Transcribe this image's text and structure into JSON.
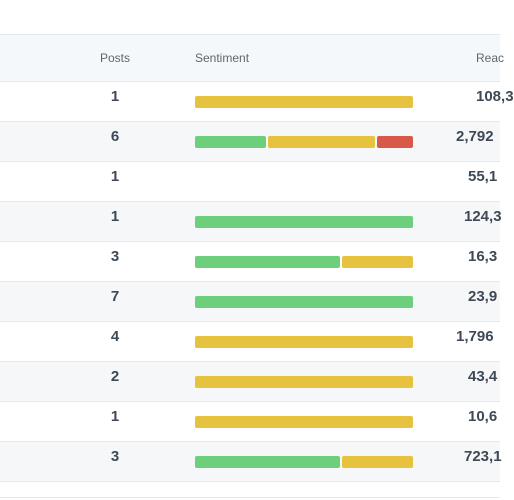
{
  "header": {
    "posts": "Posts",
    "sentiment": "Sentiment",
    "reach": "Reac"
  },
  "rows": [
    {
      "posts": "1",
      "reach": "108,3",
      "sentiment": [
        {
          "type": "neu",
          "share": 1.0
        }
      ]
    },
    {
      "posts": "6",
      "reach": "2,792",
      "sentiment": [
        {
          "type": "pos",
          "share": 0.33
        },
        {
          "type": "neu",
          "share": 0.5
        },
        {
          "type": "neg",
          "share": 0.17
        }
      ]
    },
    {
      "posts": "1",
      "reach": "55,1",
      "sentiment": []
    },
    {
      "posts": "1",
      "reach": "124,3",
      "sentiment": [
        {
          "type": "pos",
          "share": 1.0
        }
      ]
    },
    {
      "posts": "3",
      "reach": "16,3",
      "sentiment": [
        {
          "type": "pos",
          "share": 0.67
        },
        {
          "type": "neu",
          "share": 0.33
        }
      ]
    },
    {
      "posts": "7",
      "reach": "23,9",
      "sentiment": [
        {
          "type": "pos",
          "share": 1.0
        }
      ]
    },
    {
      "posts": "4",
      "reach": "1,796",
      "sentiment": [
        {
          "type": "neu",
          "share": 1.0
        }
      ]
    },
    {
      "posts": "2",
      "reach": "43,4",
      "sentiment": [
        {
          "type": "neu",
          "share": 1.0
        }
      ]
    },
    {
      "posts": "1",
      "reach": "10,6",
      "sentiment": [
        {
          "type": "neu",
          "share": 1.0
        }
      ]
    },
    {
      "posts": "3",
      "reach": "723,1",
      "sentiment": [
        {
          "type": "pos",
          "share": 0.67
        },
        {
          "type": "neu",
          "share": 0.33
        }
      ]
    }
  ],
  "colors": {
    "positive": "#6dcf7b",
    "neutral": "#e7c23e",
    "negative": "#d8584a",
    "header_bg": "#f5f8fb",
    "alt_row_bg": "#f5f7f9"
  }
}
